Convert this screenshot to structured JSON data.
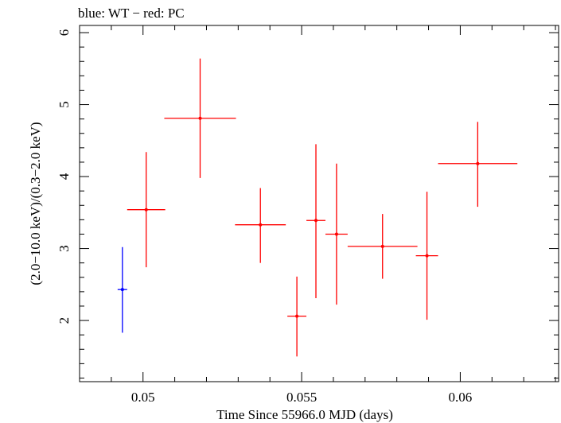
{
  "chart_data": {
    "type": "scatter",
    "title": "blue: WT − red: PC",
    "xlabel": "Time Since 55966.0 MJD (days)",
    "ylabel": "(2.0−10.0 keV)/(0.3−2.0 keV)",
    "xlim": [
      0.048,
      0.0631
    ],
    "ylim": [
      1.15,
      6.1
    ],
    "x_ticks": [
      {
        "value": 0.05,
        "label": "0.05"
      },
      {
        "value": 0.055,
        "label": "0.055"
      },
      {
        "value": 0.06,
        "label": "0.06"
      }
    ],
    "y_ticks": [
      {
        "value": 2,
        "label": "2"
      },
      {
        "value": 3,
        "label": "3"
      },
      {
        "value": 4,
        "label": "4"
      },
      {
        "value": 5,
        "label": "5"
      },
      {
        "value": 6,
        "label": "6"
      }
    ],
    "grid": false,
    "series": [
      {
        "color": "#0000ff",
        "points": [
          {
            "x": 0.04935,
            "xerr": 0.00015,
            "y": 2.43,
            "ylo": 1.83,
            "yhi": 3.02
          }
        ]
      },
      {
        "color": "#ff0000",
        "points": [
          {
            "x": 0.0501,
            "xerr": 0.0006,
            "y": 3.54,
            "ylo": 2.74,
            "yhi": 4.34
          },
          {
            "x": 0.0518,
            "xerr": 0.00113,
            "y": 4.81,
            "ylo": 3.98,
            "yhi": 5.64
          },
          {
            "x": 0.0537,
            "xerr": 0.0008,
            "y": 3.33,
            "ylo": 2.8,
            "yhi": 3.84
          },
          {
            "x": 0.05485,
            "xerr": 0.0003,
            "y": 2.06,
            "ylo": 1.5,
            "yhi": 2.61
          },
          {
            "x": 0.05545,
            "xerr": 0.0003,
            "y": 3.39,
            "ylo": 2.31,
            "yhi": 4.45
          },
          {
            "x": 0.0561,
            "xerr": 0.00035,
            "y": 3.2,
            "ylo": 2.22,
            "yhi": 4.18
          },
          {
            "x": 0.05755,
            "xerr": 0.0011,
            "y": 3.03,
            "ylo": 2.58,
            "yhi": 3.48
          },
          {
            "x": 0.05895,
            "xerr": 0.00035,
            "y": 2.9,
            "ylo": 2.01,
            "yhi": 3.79
          },
          {
            "x": 0.06055,
            "xerr": 0.00125,
            "y": 4.18,
            "ylo": 3.58,
            "yhi": 4.76
          }
        ]
      }
    ]
  }
}
